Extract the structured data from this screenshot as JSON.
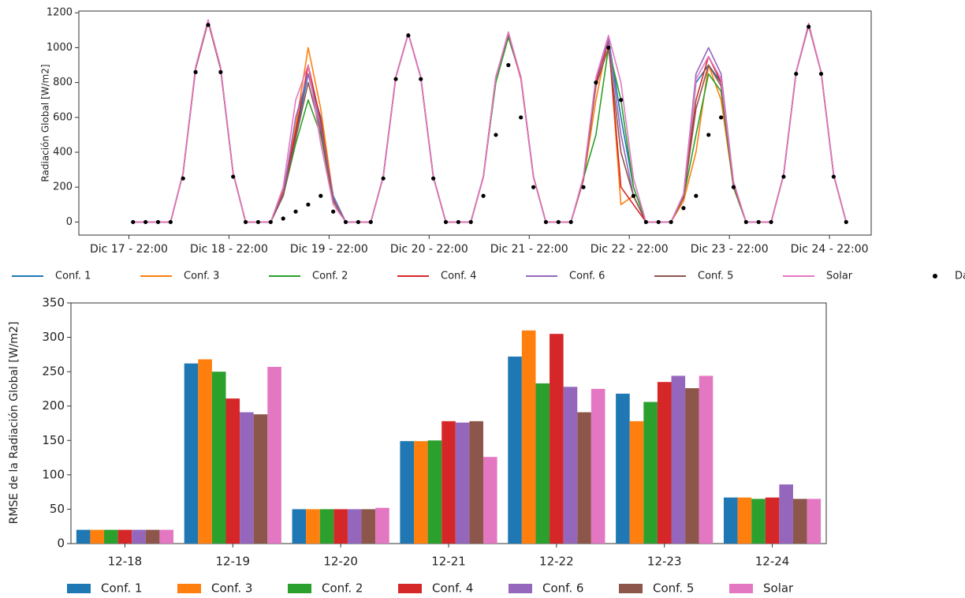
{
  "chart_data": [
    {
      "type": "line",
      "ylabel": "Radiación Global [W/m2]",
      "xlim": [
        -12,
        178
      ],
      "ylim": [
        -75,
        1210
      ],
      "xticks": [
        {
          "value": 0,
          "label": "Dic 17 - 22:00"
        },
        {
          "value": 24,
          "label": "Dic 18 - 22:00"
        },
        {
          "value": 48,
          "label": "Dic 19 - 22:00"
        },
        {
          "value": 72,
          "label": "Dic 20 - 22:00"
        },
        {
          "value": 96,
          "label": "Dic 21 - 22:00"
        },
        {
          "value": 120,
          "label": "Dic 22 - 22:00"
        },
        {
          "value": 144,
          "label": "Dic 23 - 22:00"
        },
        {
          "value": 168,
          "label": "Dic 24 - 22:00"
        }
      ],
      "yticks": [
        0,
        200,
        400,
        600,
        800,
        1000,
        1200
      ],
      "x": [
        1,
        4,
        7,
        10,
        13,
        16,
        19,
        22,
        25,
        28,
        31,
        34,
        37,
        40,
        43,
        46,
        49,
        52,
        55,
        58,
        61,
        64,
        67,
        70,
        73,
        76,
        79,
        82,
        85,
        88,
        91,
        94,
        97,
        100,
        103,
        106,
        109,
        112,
        115,
        118,
        121,
        124,
        127,
        130,
        133,
        136,
        139,
        142,
        145,
        148,
        151,
        154,
        157,
        160,
        163,
        166,
        169,
        172
      ],
      "series": [
        {
          "name": "Conf. 1",
          "color": "#1f77b4",
          "values": [
            0,
            0,
            0,
            0,
            280,
            880,
            1150,
            880,
            280,
            0,
            0,
            0,
            160,
            500,
            850,
            600,
            150,
            0,
            0,
            0,
            260,
            830,
            1080,
            830,
            260,
            0,
            0,
            0,
            260,
            830,
            1080,
            830,
            260,
            0,
            0,
            0,
            250,
            800,
            1050,
            600,
            200,
            0,
            0,
            0,
            150,
            800,
            900,
            800,
            200,
            0,
            0,
            0,
            270,
            860,
            1130,
            860,
            270,
            0
          ]
        },
        {
          "name": "Conf. 3",
          "color": "#ff7f0e",
          "values": [
            0,
            0,
            0,
            0,
            280,
            880,
            1150,
            880,
            280,
            0,
            0,
            0,
            180,
            550,
            1000,
            650,
            140,
            0,
            0,
            0,
            260,
            830,
            1080,
            830,
            260,
            0,
            0,
            0,
            260,
            830,
            1070,
            830,
            260,
            0,
            0,
            0,
            240,
            700,
            1060,
            100,
            150,
            0,
            0,
            0,
            120,
            400,
            900,
            700,
            200,
            0,
            0,
            0,
            270,
            860,
            1130,
            860,
            270,
            0
          ]
        },
        {
          "name": "Conf. 2",
          "color": "#2ca02c",
          "values": [
            0,
            0,
            0,
            0,
            280,
            880,
            1150,
            880,
            280,
            0,
            0,
            0,
            150,
            450,
            700,
            500,
            120,
            0,
            0,
            0,
            260,
            830,
            1080,
            830,
            260,
            0,
            0,
            0,
            260,
            800,
            1060,
            830,
            260,
            0,
            0,
            0,
            250,
            500,
            1000,
            700,
            200,
            0,
            0,
            0,
            140,
            500,
            850,
            750,
            200,
            0,
            0,
            0,
            270,
            860,
            1130,
            860,
            270,
            0
          ]
        },
        {
          "name": "Conf. 4",
          "color": "#d62728",
          "values": [
            0,
            0,
            0,
            0,
            280,
            880,
            1150,
            880,
            280,
            0,
            0,
            0,
            170,
            520,
            900,
            580,
            130,
            0,
            0,
            0,
            260,
            830,
            1080,
            830,
            260,
            0,
            0,
            0,
            260,
            830,
            1080,
            820,
            260,
            0,
            0,
            0,
            250,
            800,
            1040,
            200,
            100,
            0,
            0,
            0,
            150,
            700,
            950,
            800,
            220,
            0,
            0,
            0,
            270,
            860,
            1130,
            860,
            270,
            0
          ]
        },
        {
          "name": "Conf. 6",
          "color": "#9467bd",
          "values": [
            0,
            0,
            0,
            0,
            280,
            880,
            1150,
            880,
            280,
            0,
            0,
            0,
            160,
            600,
            850,
            550,
            140,
            0,
            0,
            0,
            260,
            830,
            1080,
            830,
            260,
            0,
            0,
            0,
            260,
            830,
            1080,
            830,
            260,
            0,
            0,
            0,
            250,
            820,
            1050,
            500,
            150,
            0,
            0,
            0,
            160,
            850,
            1000,
            850,
            230,
            0,
            0,
            0,
            270,
            860,
            1130,
            860,
            270,
            0
          ]
        },
        {
          "name": "Conf. 5",
          "color": "#8c564b",
          "values": [
            0,
            0,
            0,
            0,
            280,
            880,
            1150,
            880,
            280,
            0,
            0,
            0,
            150,
            480,
            800,
            520,
            120,
            0,
            0,
            0,
            260,
            830,
            1080,
            830,
            260,
            0,
            0,
            0,
            260,
            830,
            1080,
            830,
            260,
            0,
            0,
            0,
            240,
            780,
            1000,
            400,
            150,
            0,
            0,
            0,
            140,
            650,
            900,
            780,
            210,
            0,
            0,
            0,
            270,
            860,
            1130,
            860,
            270,
            0
          ]
        },
        {
          "name": "Solar",
          "color": "#e377c2",
          "values": [
            0,
            0,
            0,
            0,
            280,
            890,
            1160,
            890,
            280,
            0,
            0,
            0,
            200,
            700,
            900,
            450,
            100,
            0,
            0,
            0,
            260,
            830,
            1080,
            830,
            260,
            0,
            0,
            0,
            260,
            830,
            1090,
            830,
            260,
            0,
            0,
            0,
            260,
            830,
            1070,
            800,
            250,
            0,
            0,
            0,
            160,
            820,
            950,
            820,
            230,
            0,
            0,
            0,
            270,
            860,
            1140,
            860,
            270,
            0
          ]
        },
        {
          "name": "Datos SAVER-NET",
          "color": "#000000",
          "type": "scatter",
          "values": [
            0,
            0,
            0,
            0,
            250,
            860,
            1130,
            860,
            260,
            0,
            0,
            0,
            20,
            60,
            100,
            150,
            60,
            0,
            0,
            0,
            250,
            820,
            1070,
            820,
            250,
            0,
            0,
            0,
            150,
            500,
            900,
            600,
            200,
            0,
            0,
            0,
            200,
            800,
            1000,
            700,
            150,
            0,
            0,
            0,
            80,
            150,
            500,
            600,
            200,
            0,
            0,
            0,
            260,
            850,
            1120,
            850,
            260,
            0
          ]
        }
      ]
    },
    {
      "type": "bar",
      "ylabel": "RMSE de la Radiación Global [W/m2]",
      "ylim": [
        0,
        350
      ],
      "yticks": [
        0,
        50,
        100,
        150,
        200,
        250,
        300,
        350
      ],
      "categories": [
        "12-18",
        "12-19",
        "12-20",
        "12-21",
        "12-22",
        "12-23",
        "12-24"
      ],
      "series": [
        {
          "name": "Conf. 1",
          "color": "#1f77b4",
          "values": [
            20,
            262,
            50,
            149,
            272,
            218,
            67
          ]
        },
        {
          "name": "Conf. 3",
          "color": "#ff7f0e",
          "values": [
            20,
            268,
            50,
            149,
            310,
            178,
            67
          ]
        },
        {
          "name": "Conf. 2",
          "color": "#2ca02c",
          "values": [
            20,
            250,
            50,
            150,
            233,
            206,
            65
          ]
        },
        {
          "name": "Conf. 4",
          "color": "#d62728",
          "values": [
            20,
            211,
            50,
            178,
            305,
            235,
            67
          ]
        },
        {
          "name": "Conf. 6",
          "color": "#9467bd",
          "values": [
            20,
            191,
            50,
            176,
            228,
            244,
            86
          ]
        },
        {
          "name": "Conf. 5",
          "color": "#8c564b",
          "values": [
            20,
            188,
            50,
            178,
            191,
            226,
            65
          ]
        },
        {
          "name": "Solar",
          "color": "#e377c2",
          "values": [
            20,
            257,
            52,
            126,
            225,
            244,
            65
          ]
        }
      ]
    }
  ]
}
